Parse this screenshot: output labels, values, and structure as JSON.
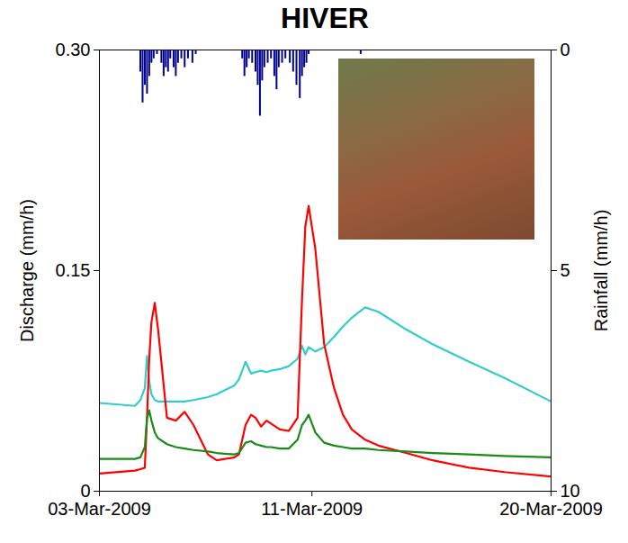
{
  "chart_data": {
    "type": "line",
    "title": "HIVER",
    "y_label": "Discharge (mm/h)",
    "y2_label": "Rainfall (mm/h)",
    "xlim": [
      "2009-03-03T00:00",
      "2009-03-20T00:00"
    ],
    "xticks": [
      {
        "value": "2009-03-03T00:00",
        "label": "03-Mar-2009"
      },
      {
        "value": "2009-03-11T00:00",
        "label": "11-Mar-2009"
      },
      {
        "value": "2009-03-20T00:00",
        "label": "20-Mar-2009"
      }
    ],
    "ylim": [
      0,
      0.3
    ],
    "yticks": [
      0,
      0.15,
      {
        "value": 0.3,
        "label": "0.30"
      }
    ],
    "y2lim": [
      10,
      0
    ],
    "y2ticks": [
      0,
      5,
      10
    ],
    "x": [
      "2009-03-03T00:00",
      "2009-03-04T08:00",
      "2009-03-04T13:00",
      "2009-03-04T17:00",
      "2009-03-04T19:00",
      "2009-03-04T21:00",
      "2009-03-04T23:00",
      "2009-03-05T02:00",
      "2009-03-05T05:00",
      "2009-03-05T13:00",
      "2009-03-05T21:00",
      "2009-03-06T05:00",
      "2009-03-06T13:00",
      "2009-03-07T02:00",
      "2009-03-07T10:00",
      "2009-03-08T02:00",
      "2009-03-08T06:00",
      "2009-03-08T12:00",
      "2009-03-08T17:00",
      "2009-03-08T21:00",
      "2009-03-09T02:00",
      "2009-03-09T07:00",
      "2009-03-09T11:00",
      "2009-03-09T19:00",
      "2009-03-10T03:00",
      "2009-03-10T11:00",
      "2009-03-10T15:00",
      "2009-03-10T18:00",
      "2009-03-10T21:00",
      "2009-03-11T03:00",
      "2009-03-11T11:00",
      "2009-03-11T20:00",
      "2009-03-12T04:00",
      "2009-03-12T12:00",
      "2009-03-13T00:00",
      "2009-03-13T12:00",
      "2009-03-14T13:00",
      "2009-03-15T13:00",
      "2009-03-16T22:00",
      "2009-03-18T06:00",
      "2009-03-20T00:00"
    ],
    "series": [
      {
        "color": "#33cccc",
        "values": [
          0.06,
          0.058,
          0.062,
          0.07,
          0.092,
          0.075,
          0.066,
          0.062,
          0.061,
          0.061,
          0.061,
          0.061,
          0.062,
          0.064,
          0.066,
          0.072,
          0.076,
          0.088,
          0.08,
          0.081,
          0.082,
          0.081,
          0.082,
          0.083,
          0.085,
          0.09,
          0.099,
          0.093,
          0.098,
          0.095,
          0.098,
          0.105,
          0.112,
          0.118,
          0.125,
          0.122,
          0.11,
          0.1,
          0.088,
          0.077,
          0.061
        ]
      },
      {
        "color": "#ff0000",
        "values": [
          0.012,
          0.014,
          0.015,
          0.016,
          0.05,
          0.09,
          0.115,
          0.128,
          0.11,
          0.05,
          0.048,
          0.054,
          0.045,
          0.025,
          0.021,
          0.023,
          0.025,
          0.045,
          0.052,
          0.05,
          0.044,
          0.048,
          0.046,
          0.042,
          0.041,
          0.05,
          0.13,
          0.18,
          0.194,
          0.165,
          0.1,
          0.07,
          0.052,
          0.042,
          0.035,
          0.031,
          0.026,
          0.021,
          0.016,
          0.013,
          0.01
        ]
      },
      {
        "color": "#1a8a1a",
        "values": [
          0.022,
          0.022,
          0.023,
          0.03,
          0.05,
          0.055,
          0.048,
          0.04,
          0.036,
          0.032,
          0.03,
          0.029,
          0.028,
          0.027,
          0.026,
          0.025,
          0.026,
          0.033,
          0.034,
          0.032,
          0.031,
          0.03,
          0.03,
          0.029,
          0.029,
          0.035,
          0.045,
          0.048,
          0.052,
          0.04,
          0.033,
          0.031,
          0.03,
          0.029,
          0.029,
          0.028,
          0.027,
          0.026,
          0.025,
          0.024,
          0.023
        ]
      },
      {
        "type": "bar",
        "axis": "y2",
        "color": "#00008b",
        "x": [
          "2009-03-04T13:00",
          "2009-03-04T15:00",
          "2009-03-04T17:00",
          "2009-03-04T19:00",
          "2009-03-04T21:00",
          "2009-03-04T23:00",
          "2009-03-05T01:00",
          "2009-03-05T04:00",
          "2009-03-05T08:00",
          "2009-03-05T10:00",
          "2009-03-05T12:00",
          "2009-03-05T14:00",
          "2009-03-05T16:00",
          "2009-03-05T19:00",
          "2009-03-05T21:00",
          "2009-03-05T23:00",
          "2009-03-06T02:00",
          "2009-03-06T05:00",
          "2009-03-06T08:00",
          "2009-03-06T12:00",
          "2009-03-06T15:00",
          "2009-03-08T09:00",
          "2009-03-08T11:00",
          "2009-03-08T13:00",
          "2009-03-08T15:00",
          "2009-03-08T18:00",
          "2009-03-08T21:00",
          "2009-03-08T23:00",
          "2009-03-09T01:00",
          "2009-03-09T03:00",
          "2009-03-09T05:00",
          "2009-03-09T08:00",
          "2009-03-09T11:00",
          "2009-03-09T14:00",
          "2009-03-09T16:00",
          "2009-03-09T18:00",
          "2009-03-09T21:00",
          "2009-03-10T00:00",
          "2009-03-10T04:00",
          "2009-03-10T07:00",
          "2009-03-10T10:00",
          "2009-03-10T13:00",
          "2009-03-10T15:00",
          "2009-03-10T17:00",
          "2009-03-10T19:00",
          "2009-03-10T21:00",
          "2009-03-12T20:00"
        ],
        "values": [
          0.5,
          1.2,
          0.8,
          1.0,
          0.6,
          0.3,
          0.2,
          0.1,
          0.3,
          0.6,
          0.4,
          0.5,
          0.2,
          0.4,
          0.6,
          0.3,
          0.2,
          0.4,
          0.2,
          0.3,
          0.1,
          0.2,
          0.6,
          0.4,
          0.2,
          0.3,
          0.5,
          0.8,
          1.5,
          0.7,
          0.4,
          0.3,
          0.2,
          0.6,
          0.9,
          0.4,
          0.3,
          0.2,
          0.3,
          0.5,
          0.8,
          1.1,
          0.6,
          0.4,
          0.3,
          0.1,
          0.1
        ]
      }
    ]
  }
}
